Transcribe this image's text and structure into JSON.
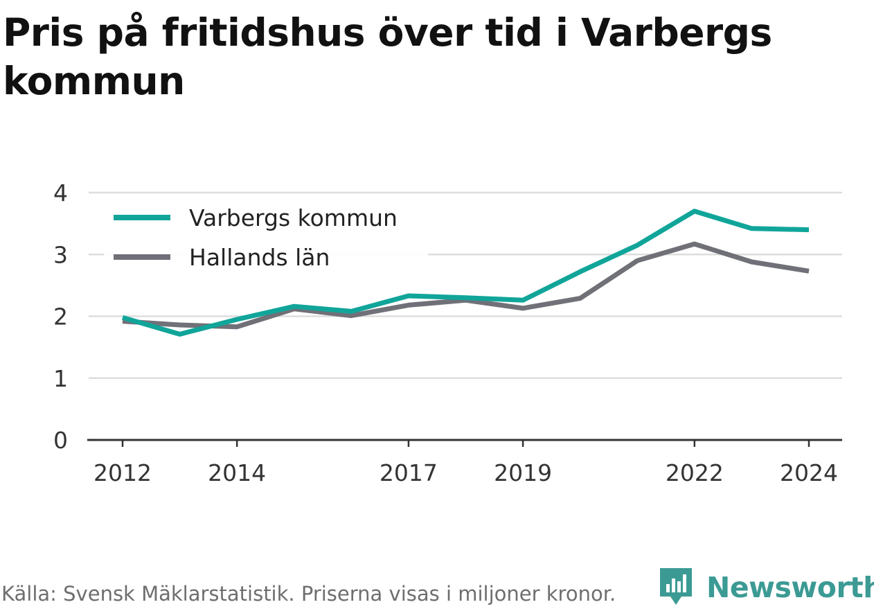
{
  "title": "Pris på fritidshus över tid i Varbergs kommun",
  "footer": {
    "source": "Källa: Svensk Mäklarstatistik. Priserna visas i miljoner kronor.",
    "brand": "Newsworthy",
    "brand_icon": "newsworthy-logo-icon"
  },
  "colors": {
    "varberg": "#11a59a",
    "halland": "#707078",
    "grid": "#dddddd",
    "axis": "#333333",
    "brand": "#3c9a94"
  },
  "chart_data": {
    "type": "line",
    "title": "Pris på fritidshus över tid i Varbergs kommun",
    "xlabel": "",
    "ylabel": "",
    "ylim": [
      0,
      4
    ],
    "xlim": [
      2012,
      2024
    ],
    "y_ticks": [
      "0",
      "1",
      "2",
      "3",
      "4"
    ],
    "x_ticks": [
      "2012",
      "2014",
      "2017",
      "2019",
      "2022",
      "2024"
    ],
    "grid": true,
    "legend_position": "top-left",
    "x": [
      2012,
      2013,
      2014,
      2015,
      2016,
      2017,
      2018,
      2019,
      2020,
      2021,
      2022,
      2023,
      2024
    ],
    "series": [
      {
        "name": "Varbergs kommun",
        "color": "#11a59a",
        "values": [
          1.98,
          1.71,
          1.95,
          2.16,
          2.08,
          2.33,
          2.3,
          2.26,
          2.72,
          3.15,
          3.7,
          3.42,
          3.4
        ]
      },
      {
        "name": "Hallands län",
        "color": "#707078",
        "values": [
          1.92,
          1.86,
          1.83,
          2.12,
          2.01,
          2.18,
          2.26,
          2.13,
          2.29,
          2.9,
          3.17,
          2.88,
          2.73
        ]
      }
    ]
  }
}
